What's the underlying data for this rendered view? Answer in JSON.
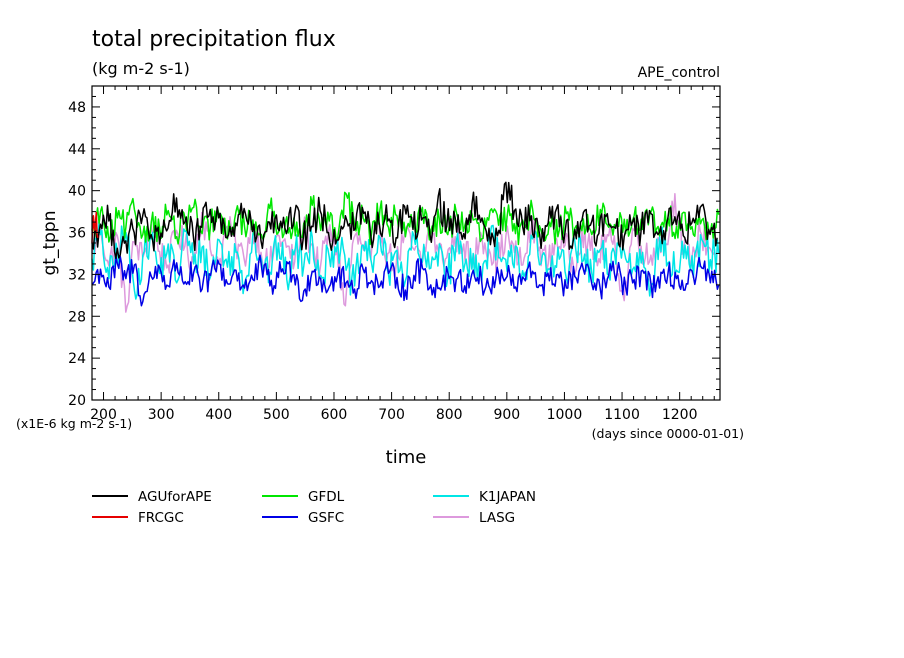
{
  "chart_data": {
    "type": "line",
    "title": "total precipitation flux",
    "subtitle": "(kg m-2 s-1)",
    "experiment": "APE_control",
    "xlabel": "time",
    "x_units": "(days since 0000-01-01)",
    "ylabel": "gt_tppn",
    "y_units": "(x1E-6 kg m-2 s-1)",
    "xlim": [
      180,
      1270
    ],
    "ylim": [
      20,
      50
    ],
    "x_ticks": [
      "200",
      "300",
      "400",
      "500",
      "600",
      "700",
      "800",
      "900",
      "1000",
      "1100",
      "1200"
    ],
    "y_ticks": [
      "20",
      "24",
      "28",
      "32",
      "36",
      "40",
      "44",
      "48"
    ],
    "grid": false,
    "legend_position": "bottom",
    "series": [
      {
        "name": "AGUforAPE",
        "color": "#000000",
        "mean": 35.5,
        "amp": 1.6,
        "x_start": 180,
        "x_end": 1265,
        "values": [
          35.0,
          36.8,
          37.1,
          34.5,
          35.2,
          36.0,
          37.6,
          35.8,
          34.9,
          36.4,
          39.3,
          37.0,
          35.6,
          36.5,
          38.2,
          37.4,
          35.5,
          36.9,
          38.3,
          36.1,
          35.2,
          37.0,
          36.4,
          35.9,
          37.8,
          35.4,
          36.6,
          38.1,
          36.0,
          35.3,
          37.6,
          36.2,
          38.4,
          35.7,
          36.9,
          37.1,
          35.5,
          38.5,
          36.3,
          37.2,
          35.8,
          39.5,
          36.6,
          37.4,
          35.9,
          38.8,
          37.0,
          36.4,
          35.7,
          40.8,
          38.1,
          36.5,
          37.6,
          35.8,
          36.9,
          38.3,
          36.1,
          35.4,
          37.2,
          36.7,
          35.9,
          37.8,
          36.4,
          35.6,
          37.0,
          36.2,
          38.1,
          35.8,
          36.8,
          37.5,
          35.7,
          36.9,
          38.4,
          36.3,
          35.5
        ]
      },
      {
        "name": "FRCGC",
        "color": "#e60000",
        "mean": 36.5,
        "amp": 1.2,
        "x_start": 180,
        "x_end": 190,
        "values": [
          35.0,
          37.6,
          36.2,
          37.9,
          35.5
        ]
      },
      {
        "name": "GFDL",
        "color": "#00e600",
        "mean": 35.8,
        "amp": 1.4,
        "x_start": 180,
        "x_end": 1268,
        "values": [
          36.2,
          38.0,
          35.1,
          37.4,
          36.5,
          38.2,
          35.8,
          37.0,
          36.3,
          38.1,
          35.6,
          37.3,
          38.4,
          35.9,
          36.8,
          37.7,
          35.4,
          38.0,
          36.6,
          37.2,
          35.8,
          38.3,
          36.0,
          37.5,
          35.7,
          36.9,
          38.6,
          36.2,
          37.1,
          35.5,
          39.7,
          36.8,
          37.4,
          35.9,
          38.2,
          36.5,
          37.6,
          35.6,
          36.9,
          38.4,
          36.1,
          37.3,
          35.8,
          38.0,
          36.6,
          37.2,
          35.4,
          38.1,
          36.7,
          37.5,
          35.9,
          36.8,
          38.3,
          36.2,
          37.0,
          35.6,
          37.8,
          36.4,
          37.3,
          35.8,
          38.2,
          36.5,
          37.1,
          35.9,
          37.6,
          36.3,
          38.0,
          35.7,
          37.4,
          36.6,
          37.9,
          35.8,
          37.2,
          36.1,
          37.7
        ]
      },
      {
        "name": "GSFC",
        "color": "#0000e6",
        "mean": 32.0,
        "amp": 1.3,
        "x_start": 180,
        "x_end": 1268,
        "values": [
          31.0,
          32.5,
          30.8,
          33.0,
          31.6,
          32.9,
          29.4,
          31.8,
          32.6,
          30.9,
          33.1,
          31.3,
          32.2,
          30.6,
          31.9,
          33.0,
          31.1,
          32.4,
          30.7,
          31.5,
          32.8,
          30.9,
          31.7,
          33.2,
          31.0,
          30.4,
          32.3,
          31.6,
          30.8,
          32.0,
          31.2,
          30.6,
          32.5,
          31.4,
          30.9,
          32.1,
          31.7,
          30.5,
          31.9,
          32.6,
          31.0,
          30.7,
          32.2,
          31.5,
          30.9,
          32.4,
          31.3,
          30.6,
          32.0,
          31.8,
          30.8,
          31.6,
          32.3,
          30.9,
          31.4,
          32.0,
          30.7,
          31.8,
          32.5,
          31.1,
          30.6,
          31.9,
          32.2,
          30.8,
          31.5,
          32.4,
          31.0,
          30.7,
          32.1,
          31.6,
          30.5,
          31.8,
          32.6,
          31.2,
          31.0
        ]
      },
      {
        "name": "K1JAPAN",
        "color": "#00e6e6",
        "mean": 33.5,
        "amp": 1.8,
        "x_start": 180,
        "x_end": 1268,
        "values": [
          33.5,
          35.8,
          31.6,
          34.2,
          36.0,
          30.5,
          33.8,
          35.4,
          32.1,
          34.9,
          31.2,
          36.1,
          33.0,
          34.6,
          31.8,
          35.3,
          32.7,
          34.1,
          31.1,
          35.9,
          33.4,
          32.2,
          35.0,
          31.5,
          34.5,
          32.8,
          35.6,
          31.9,
          33.7,
          35.2,
          32.4,
          30.9,
          34.8,
          33.1,
          35.5,
          32.0,
          34.3,
          31.4,
          35.7,
          33.2,
          32.6,
          34.9,
          31.7,
          35.1,
          32.9,
          34.0,
          31.3,
          35.8,
          33.6,
          32.3,
          34.7,
          31.8,
          35.4,
          33.0,
          32.5,
          34.6,
          31.6,
          35.2,
          33.3,
          32.1,
          34.4,
          31.9,
          35.0,
          33.5,
          32.7,
          34.1,
          31.0,
          35.6,
          33.1,
          32.4,
          34.8,
          31.7,
          35.3,
          33.4,
          34.0
        ]
      },
      {
        "name": "LASG",
        "color": "#dd99dd",
        "mean": 34.5,
        "amp": 1.5,
        "x_start": 180,
        "x_end": 1265,
        "values": [
          34.0,
          36.5,
          32.8,
          35.7,
          28.4,
          35.1,
          33.6,
          36.8,
          34.2,
          32.9,
          36.2,
          34.7,
          33.1,
          37.9,
          34.4,
          33.0,
          36.6,
          35.0,
          33.5,
          36.9,
          34.1,
          32.7,
          35.8,
          34.6,
          33.2,
          36.4,
          34.9,
          32.5,
          36.1,
          34.3,
          29.0,
          35.5,
          34.8,
          33.4,
          36.7,
          34.0,
          32.8,
          35.9,
          34.5,
          33.1,
          36.3,
          34.2,
          33.6,
          35.6,
          34.9,
          32.6,
          36.0,
          34.4,
          33.3,
          35.7,
          34.1,
          32.9,
          36.5,
          34.6,
          33.0,
          35.4,
          34.8,
          32.7,
          36.2,
          34.3,
          33.5,
          35.8,
          34.0,
          29.5,
          36.4,
          34.7,
          33.2,
          35.5,
          34.9,
          39.7,
          34.2,
          33.4,
          36.1,
          34.6,
          34.0
        ]
      }
    ]
  }
}
